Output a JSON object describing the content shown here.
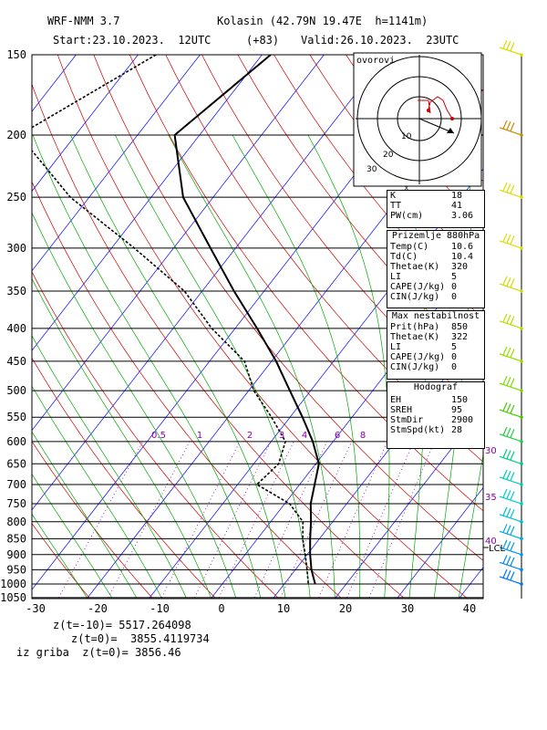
{
  "header": {
    "model": "WRF-NMM 3.7",
    "location": "Kolasin (42.79N 19.47E  h=1141m)",
    "start": "Start:23.10.2023.  12UTC",
    "offset": "(+83)",
    "valid": "Valid:26.10.2023.  23UTC"
  },
  "hodograph": {
    "label": "ovorovi"
  },
  "indices_box": {
    "rows": [
      {
        "k": "K",
        "v": "18"
      },
      {
        "k": "TT",
        "v": "41"
      },
      {
        "k": "PW(cm)",
        "v": "3.06"
      }
    ]
  },
  "surface_box": {
    "title": "Prizemlje 880hPa",
    "rows": [
      {
        "k": "Temp(C)",
        "v": "10.6"
      },
      {
        "k": "Td(C)",
        "v": "10.4"
      },
      {
        "k": "Thetae(K)",
        "v": "320"
      },
      {
        "k": "LI",
        "v": "5"
      },
      {
        "k": "CAPE(J/kg)",
        "v": "0"
      },
      {
        "k": "CIN(J/kg)",
        "v": "0"
      }
    ]
  },
  "unstable_box": {
    "title": "Max nestabilnost",
    "rows": [
      {
        "k": "Prit(hPa)",
        "v": "850"
      },
      {
        "k": "Thetae(K)",
        "v": "322"
      },
      {
        "k": "LI",
        "v": "5"
      },
      {
        "k": "CAPE(J/kg)",
        "v": "0"
      },
      {
        "k": "CIN(J/kg)",
        "v": "0"
      }
    ]
  },
  "hodo_box": {
    "title": "Hodograf",
    "rows": [
      {
        "k": "EH",
        "v": "150"
      },
      {
        "k": "SREH",
        "v": "95"
      },
      {
        "k": "StmDir",
        "v": "2900"
      },
      {
        "k": "StmSpd(kt)",
        "v": "28"
      }
    ]
  },
  "footer": {
    "line1": "z(t=-10)= 5517.264098",
    "line2": "z(t=0)=  3855.4119734",
    "line3": "iz griba  z(t=0)= 3856.46"
  },
  "colors": {
    "isobar": "#000000",
    "isotherm": "#0000ff",
    "dry_adiabat": "#cc0000",
    "moist_adiabat": "#00aa00",
    "mixing_ratio": "#8800aa",
    "temperature": "#000000",
    "dewpoint": "#000000",
    "wind_barb": "#cccc00"
  },
  "chart_data": {
    "type": "skew-t",
    "pressure_levels": [
      150,
      200,
      250,
      300,
      350,
      400,
      450,
      500,
      550,
      600,
      650,
      700,
      750,
      800,
      850,
      900,
      950,
      1000,
      1050
    ],
    "x_ticks": [
      -30,
      -20,
      -10,
      0,
      10,
      20,
      30,
      40
    ],
    "mixing_ratio_labels": [
      "0.5",
      "1",
      "2",
      "3",
      "4",
      "6",
      "8"
    ],
    "wind_speed_labels": [
      "30",
      "35",
      "40"
    ],
    "lcl_label": "LCL",
    "temperature": [
      {
        "p": 150,
        "t": -58.6
      },
      {
        "p": 200,
        "t": -64.0
      },
      {
        "p": 250,
        "t": -54.8
      },
      {
        "p": 300,
        "t": -44.0
      },
      {
        "p": 350,
        "t": -34.8
      },
      {
        "p": 400,
        "t": -26.4
      },
      {
        "p": 450,
        "t": -19.2
      },
      {
        "p": 500,
        "t": -13.3
      },
      {
        "p": 550,
        "t": -7.9
      },
      {
        "p": 600,
        "t": -3.2
      },
      {
        "p": 650,
        "t": 0.6
      },
      {
        "p": 700,
        "t": 2.5
      },
      {
        "p": 750,
        "t": 4.3
      },
      {
        "p": 800,
        "t": 6.6
      },
      {
        "p": 850,
        "t": 8.6
      },
      {
        "p": 900,
        "t": 10.6
      },
      {
        "p": 950,
        "t": 12.7
      },
      {
        "p": 1000,
        "t": 15.1
      }
    ],
    "dewpoint": [
      {
        "p": 150,
        "t": -77.1
      },
      {
        "p": 200,
        "t": -89.1
      },
      {
        "p": 250,
        "t": -73.0
      },
      {
        "p": 300,
        "t": -56.3
      },
      {
        "p": 350,
        "t": -42.8
      },
      {
        "p": 400,
        "t": -33.7
      },
      {
        "p": 450,
        "t": -24.3
      },
      {
        "p": 500,
        "t": -19.1
      },
      {
        "p": 550,
        "t": -12.9
      },
      {
        "p": 600,
        "t": -7.6
      },
      {
        "p": 650,
        "t": -5.9
      },
      {
        "p": 700,
        "t": -6.8
      },
      {
        "p": 750,
        "t": 0.9
      },
      {
        "p": 800,
        "t": 5.3
      },
      {
        "p": 850,
        "t": 7.4
      },
      {
        "p": 900,
        "t": 9.8
      },
      {
        "p": 950,
        "t": 12.0
      },
      {
        "p": 1000,
        "t": 14.0
      }
    ]
  }
}
